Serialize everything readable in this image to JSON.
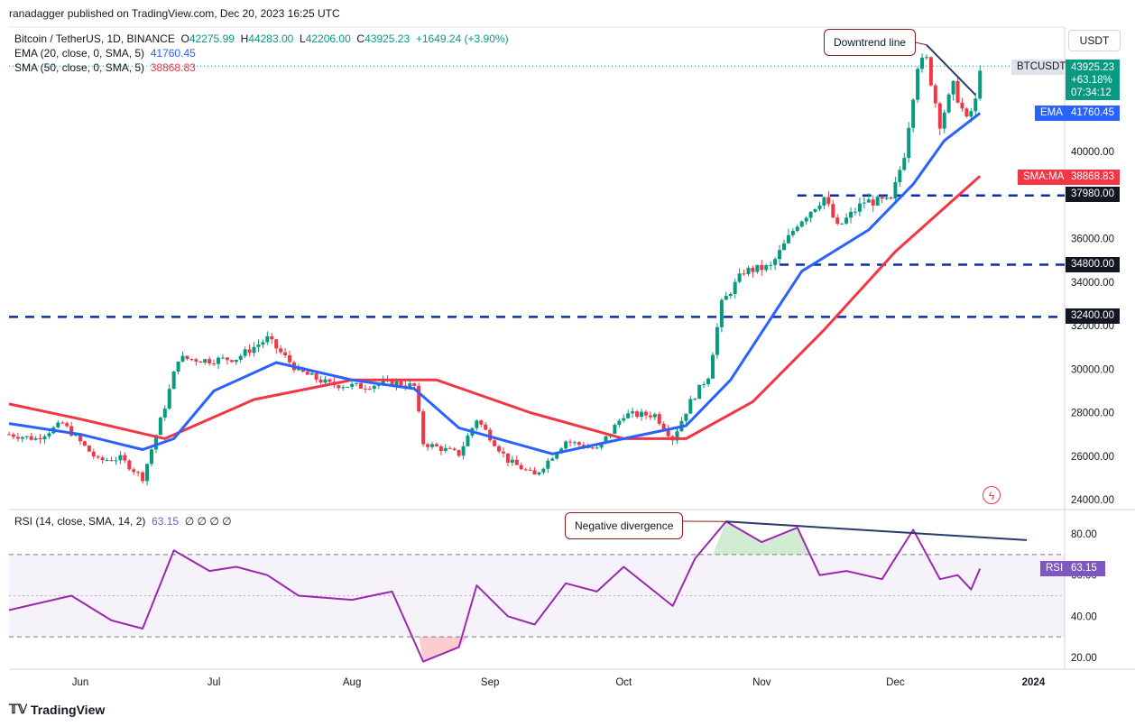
{
  "header": {
    "publisher": "ranadagger published on TradingView.com, Dec 20, 2023 16:25 UTC"
  },
  "legend": {
    "symbol": "Bitcoin / TetherUS, 1D, BINANCE",
    "o_label": "O",
    "o_value": "42275.99",
    "h_label": "H",
    "h_value": "44283.00",
    "l_label": "L",
    "l_value": "42206.00",
    "c_label": "C",
    "c_value": "43925.23",
    "change": "+1649.24 (+3.90%)",
    "ema_label": "EMA (20, close, 0, SMA, 5)",
    "ema_value": "41760.45",
    "sma_label": "SMA (50, close, 0, SMA, 5)",
    "sma_value": "38868.83"
  },
  "currency_button": "USDT",
  "price_tags": {
    "symbol": "BTCUSDT",
    "last": "43925.23",
    "pct": "+63.18%",
    "countdown": "07:34:12",
    "ema_label": "EMA",
    "ema_value": "41760.45",
    "sma_label": "SMA:MA",
    "sma_value": "38868.83",
    "level1": "37980.00",
    "level2": "34800.00",
    "level3": "32400.00",
    "rsi_label": "RSI",
    "rsi_value": "63.15"
  },
  "rsi_legend": {
    "label": "RSI (14, close, SMA, 14, 2)",
    "value": "63.15",
    "extra": "∅ ∅ ∅ ∅"
  },
  "annotations": {
    "downtrend": "Downtrend line",
    "divergence": "Negative divergence"
  },
  "footer": {
    "brand": "TradingView"
  },
  "colors": {
    "up": "#089981",
    "down": "#f23645",
    "ema": "#2962ff",
    "sma": "#f23645",
    "rsi": "#9c27b0",
    "level": "#0d2ea8",
    "trend": "#2a3a6b"
  },
  "chart_data": {
    "type": "candlestick",
    "symbol": "BTCUSDT",
    "timeframe": "1D",
    "y_axis": {
      "ticks": [
        24000,
        26000,
        28000,
        30000,
        32000,
        34000,
        36000,
        38000,
        40000
      ],
      "range": [
        23500,
        45000
      ]
    },
    "x_axis": {
      "ticks": [
        "Jun",
        "Jul",
        "Aug",
        "Sep",
        "Oct",
        "Nov",
        "Dec",
        "2024"
      ]
    },
    "horizontal_levels": [
      37980,
      34800,
      32400
    ],
    "close_path": [
      [
        "2023-05-16",
        27000
      ],
      [
        "2023-05-22",
        26800
      ],
      [
        "2023-05-28",
        27500
      ],
      [
        "2023-06-05",
        25800
      ],
      [
        "2023-06-10",
        25900
      ],
      [
        "2023-06-15",
        25000
      ],
      [
        "2023-06-20",
        28300
      ],
      [
        "2023-06-23",
        30500
      ],
      [
        "2023-06-30",
        30400
      ],
      [
        "2023-07-06",
        30500
      ],
      [
        "2023-07-13",
        31400
      ],
      [
        "2023-07-20",
        29900
      ],
      [
        "2023-07-27",
        29300
      ],
      [
        "2023-08-03",
        29200
      ],
      [
        "2023-08-10",
        29400
      ],
      [
        "2023-08-15",
        29200
      ],
      [
        "2023-08-17",
        26600
      ],
      [
        "2023-08-25",
        26100
      ],
      [
        "2023-08-29",
        27700
      ],
      [
        "2023-09-05",
        25800
      ],
      [
        "2023-09-11",
        25100
      ],
      [
        "2023-09-18",
        26700
      ],
      [
        "2023-09-25",
        26300
      ],
      [
        "2023-10-01",
        27900
      ],
      [
        "2023-10-08",
        27900
      ],
      [
        "2023-10-12",
        26800
      ],
      [
        "2023-10-16",
        28500
      ],
      [
        "2023-10-20",
        29700
      ],
      [
        "2023-10-23",
        33000
      ],
      [
        "2023-10-28",
        34500
      ],
      [
        "2023-11-03",
        34700
      ],
      [
        "2023-11-09",
        36700
      ],
      [
        "2023-11-15",
        37900
      ],
      [
        "2023-11-18",
        36500
      ],
      [
        "2023-11-24",
        37700
      ],
      [
        "2023-11-30",
        37700
      ],
      [
        "2023-12-03",
        39900
      ],
      [
        "2023-12-06",
        44000
      ],
      [
        "2023-12-08",
        44200
      ],
      [
        "2023-12-11",
        41300
      ],
      [
        "2023-12-14",
        43000
      ],
      [
        "2023-12-17",
        41400
      ],
      [
        "2023-12-19",
        42300
      ],
      [
        "2023-12-20",
        43925
      ]
    ],
    "ema20_path": [
      [
        "2023-05-16",
        27500
      ],
      [
        "2023-06-01",
        27000
      ],
      [
        "2023-06-15",
        26300
      ],
      [
        "2023-06-22",
        26800
      ],
      [
        "2023-07-01",
        29000
      ],
      [
        "2023-07-15",
        30300
      ],
      [
        "2023-08-01",
        29500
      ],
      [
        "2023-08-15",
        29100
      ],
      [
        "2023-08-25",
        27300
      ],
      [
        "2023-09-15",
        26100
      ],
      [
        "2023-10-01",
        26800
      ],
      [
        "2023-10-15",
        27400
      ],
      [
        "2023-10-25",
        29500
      ],
      [
        "2023-11-10",
        34500
      ],
      [
        "2023-11-25",
        36400
      ],
      [
        "2023-12-05",
        38500
      ],
      [
        "2023-12-12",
        40500
      ],
      [
        "2023-12-20",
        41760
      ]
    ],
    "sma50_path": [
      [
        "2023-05-16",
        28400
      ],
      [
        "2023-06-01",
        27700
      ],
      [
        "2023-06-20",
        26800
      ],
      [
        "2023-07-10",
        28600
      ],
      [
        "2023-08-01",
        29500
      ],
      [
        "2023-08-20",
        29500
      ],
      [
        "2023-09-10",
        28000
      ],
      [
        "2023-10-01",
        26800
      ],
      [
        "2023-10-15",
        26800
      ],
      [
        "2023-10-30",
        28500
      ],
      [
        "2023-11-15",
        31800
      ],
      [
        "2023-12-01",
        35400
      ],
      [
        "2023-12-20",
        38868
      ]
    ],
    "rsi": {
      "y_ticks": [
        20,
        40,
        60,
        80
      ],
      "bands": [
        30,
        70
      ],
      "path": [
        [
          "2023-05-16",
          43
        ],
        [
          "2023-05-30",
          50
        ],
        [
          "2023-06-08",
          38
        ],
        [
          "2023-06-15",
          34
        ],
        [
          "2023-06-22",
          72
        ],
        [
          "2023-06-30",
          62
        ],
        [
          "2023-07-06",
          64
        ],
        [
          "2023-07-13",
          60
        ],
        [
          "2023-07-20",
          50
        ],
        [
          "2023-08-01",
          48
        ],
        [
          "2023-08-10",
          52
        ],
        [
          "2023-08-17",
          18
        ],
        [
          "2023-08-25",
          25
        ],
        [
          "2023-08-29",
          55
        ],
        [
          "2023-09-05",
          40
        ],
        [
          "2023-09-11",
          36
        ],
        [
          "2023-09-18",
          56
        ],
        [
          "2023-09-25",
          52
        ],
        [
          "2023-10-01",
          64
        ],
        [
          "2023-10-12",
          45
        ],
        [
          "2023-10-17",
          68
        ],
        [
          "2023-10-24",
          86
        ],
        [
          "2023-11-01",
          76
        ],
        [
          "2023-11-09",
          83
        ],
        [
          "2023-11-14",
          60
        ],
        [
          "2023-11-20",
          62
        ],
        [
          "2023-11-28",
          58
        ],
        [
          "2023-12-05",
          82
        ],
        [
          "2023-12-11",
          58
        ],
        [
          "2023-12-15",
          60
        ],
        [
          "2023-12-18",
          53
        ],
        [
          "2023-12-20",
          63.15
        ]
      ]
    }
  }
}
